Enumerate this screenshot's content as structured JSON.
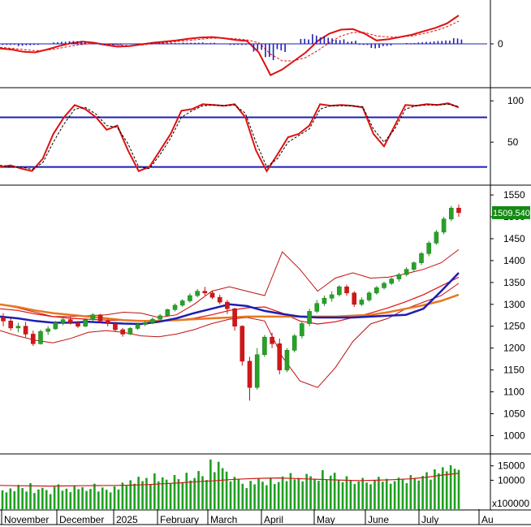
{
  "chart_data": [
    {
      "type": "bar",
      "panel": "macd",
      "yticks": [
        0
      ],
      "series": [
        {
          "kind": "line",
          "color": "#e01010",
          "values": [
            -0.8,
            -1.0,
            -1.4,
            -1.5,
            -1.0,
            -0.4,
            0.1,
            0.4,
            0.2,
            -0.2,
            -0.5,
            -0.4,
            -0.1,
            0.2,
            0.4,
            0.6,
            0.9,
            1.1,
            1.2,
            1.0,
            0.7,
            0.5,
            -1.5,
            -5.5,
            -4.5,
            -3.0,
            -1.5,
            0.5,
            1.8,
            2.5,
            2.6,
            1.8,
            0.6,
            0.8,
            1.2,
            1.6,
            2.2,
            2.8,
            3.6,
            5.0
          ]
        },
        {
          "kind": "line",
          "color": "#e01010",
          "dashed": true,
          "values": [
            -0.6,
            -0.8,
            -1.0,
            -1.2,
            -1.1,
            -0.8,
            -0.4,
            -0.1,
            0.1,
            0.0,
            -0.2,
            -0.3,
            -0.2,
            0.0,
            0.2,
            0.4,
            0.6,
            0.8,
            1.0,
            1.0,
            0.9,
            0.7,
            0.2,
            -1.8,
            -3.0,
            -3.0,
            -2.4,
            -1.2,
            0.2,
            1.4,
            2.0,
            2.0,
            1.4,
            1.2,
            1.2,
            1.4,
            1.8,
            2.3,
            3.0,
            4.0
          ]
        },
        {
          "kind": "histogram",
          "color": "#1e1eb4",
          "values": [
            -0.2,
            -0.2,
            -0.4,
            -0.3,
            0.1,
            0.4,
            0.5,
            0.5,
            0.1,
            -0.2,
            -0.3,
            -0.1,
            0.1,
            0.2,
            0.2,
            0.2,
            0.3,
            0.3,
            0.2,
            0.0,
            -0.2,
            -0.2,
            -1.7,
            -3.7,
            -1.5,
            0.0,
            0.9,
            1.7,
            1.6,
            1.1,
            0.6,
            -0.2,
            -0.8,
            -0.4,
            0.0,
            0.2,
            0.4,
            0.5,
            0.6,
            1.0
          ]
        }
      ]
    },
    {
      "type": "line",
      "panel": "stochastic",
      "yticks": [
        50,
        100
      ],
      "ylim": [
        0,
        110
      ],
      "levels": [
        20,
        80
      ],
      "series": [
        {
          "color": "#e01010",
          "values": [
            20,
            22,
            18,
            15,
            30,
            60,
            80,
            95,
            90,
            80,
            65,
            70,
            40,
            15,
            20,
            40,
            60,
            88,
            90,
            96,
            95,
            94,
            96,
            80,
            40,
            15,
            35,
            56,
            60,
            70,
            96,
            94,
            95,
            94,
            92,
            60,
            45,
            70,
            95,
            94,
            96,
            95,
            97,
            92
          ]
        },
        {
          "color": "#000000",
          "dashed": true,
          "values": [
            22,
            20,
            20,
            17,
            25,
            50,
            72,
            90,
            92,
            84,
            70,
            68,
            48,
            20,
            18,
            35,
            55,
            80,
            88,
            94,
            95,
            94,
            95,
            85,
            50,
            20,
            30,
            50,
            58,
            66,
            90,
            94,
            94,
            94,
            93,
            66,
            50,
            66,
            90,
            94,
            95,
            95,
            96,
            93
          ]
        }
      ]
    },
    {
      "type": "candlestick",
      "panel": "price",
      "yticks": [
        1000,
        1050,
        1100,
        1150,
        1200,
        1250,
        1300,
        1350,
        1400,
        1450,
        1500,
        1550
      ],
      "ylim": [
        960,
        1565
      ],
      "last_price_label": "1509.540",
      "candles": [
        [
          1270,
          1280,
          1250,
          1262
        ],
        [
          1262,
          1268,
          1240,
          1246
        ],
        [
          1246,
          1258,
          1236,
          1250
        ],
        [
          1250,
          1260,
          1225,
          1232
        ],
        [
          1232,
          1240,
          1205,
          1210
        ],
        [
          1210,
          1242,
          1208,
          1238
        ],
        [
          1238,
          1250,
          1230,
          1244
        ],
        [
          1244,
          1262,
          1242,
          1258
        ],
        [
          1258,
          1270,
          1252,
          1265
        ],
        [
          1265,
          1272,
          1254,
          1258
        ],
        [
          1258,
          1262,
          1246,
          1250
        ],
        [
          1250,
          1268,
          1248,
          1265
        ],
        [
          1265,
          1280,
          1262,
          1276
        ],
        [
          1276,
          1278,
          1258,
          1262
        ],
        [
          1262,
          1266,
          1250,
          1256
        ],
        [
          1256,
          1260,
          1238,
          1242
        ],
        [
          1242,
          1246,
          1226,
          1232
        ],
        [
          1232,
          1248,
          1230,
          1245
        ],
        [
          1245,
          1258,
          1242,
          1254
        ],
        [
          1254,
          1262,
          1250,
          1258
        ],
        [
          1258,
          1270,
          1255,
          1266
        ],
        [
          1266,
          1278,
          1262,
          1274
        ],
        [
          1274,
          1290,
          1272,
          1288
        ],
        [
          1288,
          1302,
          1284,
          1298
        ],
        [
          1298,
          1312,
          1294,
          1308
        ],
        [
          1308,
          1325,
          1304,
          1320
        ],
        [
          1320,
          1335,
          1316,
          1330
        ],
        [
          1330,
          1340,
          1320,
          1326
        ],
        [
          1326,
          1332,
          1312,
          1316
        ],
        [
          1316,
          1322,
          1300,
          1305
        ],
        [
          1305,
          1310,
          1278,
          1290
        ],
        [
          1290,
          1292,
          1240,
          1250
        ],
        [
          1250,
          1252,
          1160,
          1170
        ],
        [
          1170,
          1180,
          1080,
          1110
        ],
        [
          1110,
          1200,
          1105,
          1185
        ],
        [
          1185,
          1230,
          1180,
          1225
        ],
        [
          1225,
          1235,
          1200,
          1210
        ],
        [
          1210,
          1222,
          1140,
          1150
        ],
        [
          1150,
          1200,
          1145,
          1195
        ],
        [
          1195,
          1232,
          1190,
          1228
        ],
        [
          1228,
          1260,
          1222,
          1256
        ],
        [
          1256,
          1290,
          1250,
          1284
        ],
        [
          1284,
          1310,
          1280,
          1302
        ],
        [
          1302,
          1320,
          1296,
          1314
        ],
        [
          1314,
          1330,
          1306,
          1322
        ],
        [
          1322,
          1344,
          1318,
          1340
        ],
        [
          1340,
          1345,
          1320,
          1326
        ],
        [
          1326,
          1330,
          1294,
          1300
        ],
        [
          1300,
          1316,
          1296,
          1310
        ],
        [
          1310,
          1330,
          1306,
          1326
        ],
        [
          1326,
          1342,
          1322,
          1338
        ],
        [
          1338,
          1352,
          1334,
          1348
        ],
        [
          1348,
          1362,
          1344,
          1358
        ],
        [
          1358,
          1372,
          1352,
          1368
        ],
        [
          1368,
          1385,
          1364,
          1380
        ],
        [
          1380,
          1398,
          1376,
          1395
        ],
        [
          1395,
          1420,
          1390,
          1416
        ],
        [
          1416,
          1445,
          1410,
          1440
        ],
        [
          1440,
          1470,
          1436,
          1465
        ],
        [
          1465,
          1500,
          1460,
          1495
        ],
        [
          1495,
          1525,
          1490,
          1520
        ],
        [
          1520,
          1528,
          1500,
          1509.54
        ]
      ],
      "lines": [
        {
          "color": "#1e1eb4",
          "values": [
            1272,
            1268,
            1262,
            1258,
            1258,
            1260,
            1258,
            1256,
            1255,
            1260,
            1268,
            1280,
            1290,
            1300,
            1296,
            1285,
            1278,
            1272,
            1270,
            1270,
            1270,
            1272,
            1274,
            1276,
            1290,
            1330,
            1372
          ]
        },
        {
          "color": "#e87820",
          "values": [
            1300,
            1294,
            1286,
            1280,
            1276,
            1272,
            1268,
            1264,
            1262,
            1262,
            1264,
            1266,
            1268,
            1270,
            1272,
            1272,
            1272,
            1272,
            1272,
            1272,
            1274,
            1276,
            1282,
            1290,
            1298,
            1308,
            1322
          ]
        },
        {
          "color": "#c01010",
          "values": [
            1300,
            1292,
            1282,
            1272,
            1272,
            1274,
            1276,
            1282,
            1280,
            1270,
            1276,
            1300,
            1330,
            1340,
            1330,
            1320,
            1420,
            1380,
            1330,
            1360,
            1372,
            1360,
            1362,
            1370,
            1380,
            1395,
            1425
          ]
        },
        {
          "color": "#c01010",
          "values": [
            1240,
            1228,
            1218,
            1212,
            1222,
            1236,
            1240,
            1236,
            1228,
            1226,
            1232,
            1242,
            1256,
            1266,
            1270,
            1262,
            1180,
            1125,
            1110,
            1155,
            1215,
            1255,
            1268,
            1290,
            1305,
            1320,
            1348
          ]
        }
      ],
      "ma_slow": {
        "color": "#e01010",
        "values": [
          1290,
          1286,
          1278,
          1272,
          1268,
          1266,
          1264,
          1263,
          1262,
          1262,
          1264,
          1268,
          1276,
          1286,
          1292,
          1294,
          1280,
          1262,
          1255,
          1260,
          1270,
          1280,
          1292,
          1306,
          1322,
          1342,
          1362
        ]
      }
    },
    {
      "type": "bar",
      "panel": "volume",
      "yticks": [
        10000,
        15000
      ],
      "unit_label": "x100000",
      "ylim": [
        0,
        18000
      ],
      "values": [
        6500,
        5800,
        7200,
        6200,
        8400,
        7300,
        6100,
        9000,
        5600,
        6800,
        7400,
        6600,
        5200,
        7800,
        8600,
        6400,
        7100,
        5900,
        8200,
        6900,
        7600,
        6300,
        7000,
        8800,
        6100,
        7500,
        6700,
        5800,
        7900,
        6800,
        9200,
        8100,
        10000,
        8800,
        11200,
        9700,
        10800,
        8700,
        12400,
        9600,
        11000,
        10200,
        8900,
        11800,
        10400,
        9200,
        12600,
        9900,
        10800,
        13200,
        11400,
        10100,
        17200,
        12800,
        16400,
        14200,
        13000,
        9600,
        11200,
        10400,
        8800,
        7300,
        9800,
        8600,
        10700,
        9500,
        8300,
        10900,
        8700,
        9400,
        11300,
        9700,
        12500,
        10300,
        10800,
        9600,
        12200,
        11400,
        10500,
        9800,
        13500,
        10100,
        11600,
        12600,
        10200,
        9300,
        11400,
        10000,
        8700,
        9600,
        10800,
        9200,
        8600,
        9900,
        11200,
        9500,
        10500,
        8800,
        9700,
        10900,
        10300,
        9000,
        11800,
        10600,
        9900,
        11500,
        12800,
        10200,
        13800,
        12400,
        14500,
        13100,
        15200,
        14000,
        13600
      ],
      "ma": [
        8200,
        8100,
        8050,
        8000,
        8050,
        8100,
        8150,
        8200,
        8300,
        8500,
        8800,
        9100,
        9500,
        9800,
        10200,
        10500,
        10700,
        10800,
        10600,
        10400,
        10200,
        10000,
        9900,
        10000,
        10200,
        10500,
        11000,
        11800,
        12400
      ]
    }
  ],
  "months": [
    "November",
    "December",
    "2025",
    "February",
    "March",
    "April",
    "May",
    "June",
    "July",
    "Au"
  ]
}
